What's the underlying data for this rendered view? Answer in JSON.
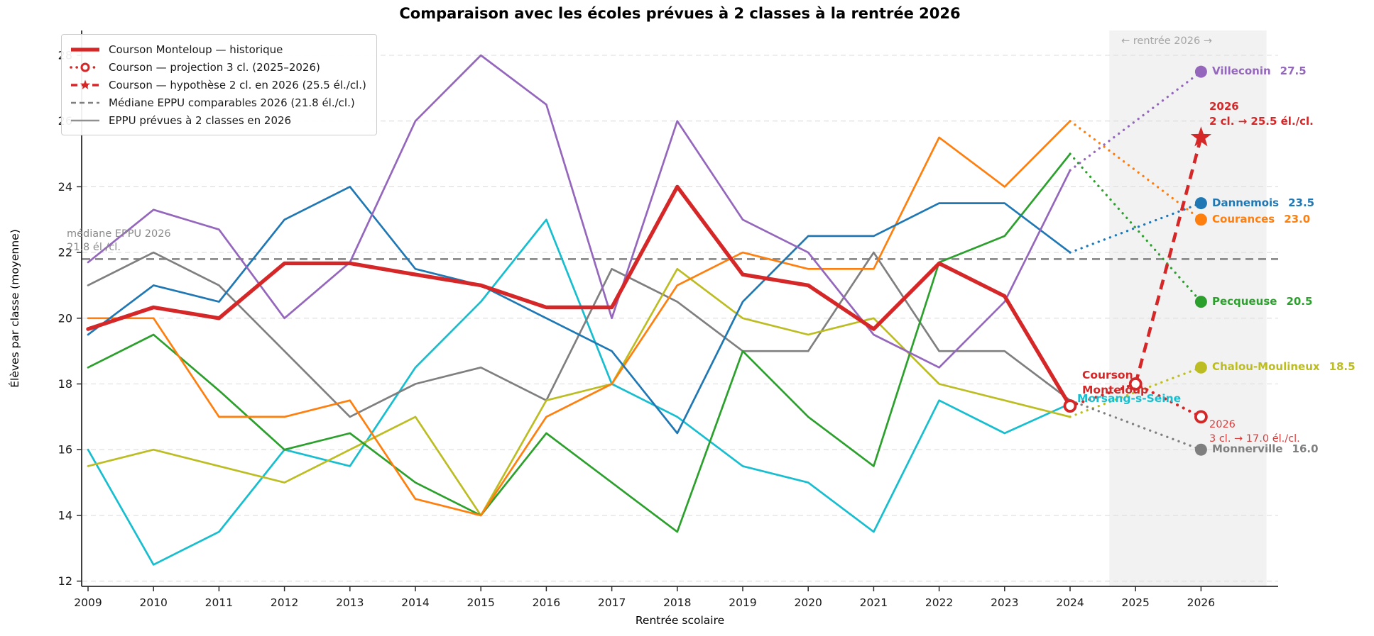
{
  "title": "Comparaison avec les écoles prévues à 2 classes à la rentrée 2026",
  "axes": {
    "xlabel": "Rentrée scolaire",
    "ylabel": "Élèves par classe (moyenne)",
    "yticks": [
      12,
      14,
      16,
      18,
      20,
      22,
      24,
      26,
      28
    ],
    "xticks": [
      2009,
      2010,
      2011,
      2012,
      2013,
      2014,
      2015,
      2016,
      2017,
      2018,
      2019,
      2020,
      2021,
      2022,
      2023,
      2024,
      2025,
      2026
    ]
  },
  "legend": {
    "items": [
      {
        "label": "Courson Monteloup — historique",
        "swatch": "thick-red-line"
      },
      {
        "label": "Courson — projection 3 cl. (2025–2026)",
        "swatch": "red-dotted-circle"
      },
      {
        "label": "Courson — hypothèse 2 cl. en 2026 (25.5 él./cl.)",
        "swatch": "red-dashed-star"
      },
      {
        "label": "Médiane EPPU comparables 2026 (21.8 él./cl.)",
        "swatch": "gray-dashed-line"
      },
      {
        "label": "EPPU prévues à 2 classes en 2026",
        "swatch": "gray-solid-line"
      }
    ]
  },
  "median": {
    "value": 21.8,
    "label_line1": "médiane EPPU 2026",
    "label_line2": "21.8 él./cl."
  },
  "band": {
    "label": "← rentrée 2026 →"
  },
  "annotations": {
    "courson_line1": "Courson",
    "courson_line2": "Monteloup",
    "morsang": "Morsang-s-Seine",
    "hyp_line1": "2026",
    "hyp_line2": "2 cl. → 25.5 él./cl.",
    "proj_line1": "2026",
    "proj_line2": "3 cl. → 17.0 él./cl."
  },
  "end_labels": [
    {
      "name": "Villeconin",
      "value": "27.5",
      "color": "#9467bd"
    },
    {
      "name": "Dannemois",
      "value": "23.5",
      "color": "#1f77b4"
    },
    {
      "name": "Courances",
      "value": "23.0",
      "color": "#ff7f0e"
    },
    {
      "name": "Pecqueuse",
      "value": "20.5",
      "color": "#2ca02c"
    },
    {
      "name": "Chalou-Moulineux",
      "value": "18.5",
      "color": "#bcbd22"
    },
    {
      "name": "Monnerville",
      "value": "16.0",
      "color": "#7f7f7f"
    }
  ],
  "chart_data": {
    "type": "line",
    "title": "Comparaison avec les écoles prévues à 2 classes à la rentrée 2026",
    "xlabel": "Rentrée scolaire",
    "ylabel": "Élèves par classe (moyenne)",
    "xlim": [
      2008.9,
      2027.2
    ],
    "ylim": [
      11.8,
      28.8
    ],
    "grid": true,
    "legend_position": "upper left",
    "shaded_band_years": [
      2024.6,
      2027.0
    ],
    "median_value": 21.8,
    "years": [
      2009,
      2010,
      2011,
      2012,
      2013,
      2014,
      2015,
      2016,
      2017,
      2018,
      2019,
      2020,
      2021,
      2022,
      2023,
      2024
    ],
    "series": [
      {
        "name": "Courson Monteloup",
        "color": "#d62728",
        "thick": true,
        "values": [
          19.67,
          20.33,
          20.0,
          21.67,
          21.67,
          21.33,
          21.0,
          20.33,
          20.33,
          24.0,
          21.33,
          21.0,
          19.67,
          21.67,
          20.67,
          17.33
        ]
      },
      {
        "name": "Villeconin",
        "color": "#9467bd",
        "thick": false,
        "values": [
          21.7,
          23.3,
          22.7,
          20.0,
          21.7,
          26.0,
          28.0,
          26.5,
          20.0,
          26.0,
          23.0,
          22.0,
          19.5,
          18.5,
          20.5,
          24.5
        ]
      },
      {
        "name": "Dannemois",
        "color": "#1f77b4",
        "thick": false,
        "values": [
          19.5,
          21.0,
          20.5,
          23.0,
          24.0,
          21.5,
          21.0,
          20.0,
          19.0,
          16.5,
          20.5,
          22.5,
          22.5,
          23.5,
          23.5,
          22.0
        ]
      },
      {
        "name": "Courances",
        "color": "#ff7f0e",
        "thick": false,
        "values": [
          20.0,
          20.0,
          17.0,
          17.0,
          17.5,
          14.5,
          14.0,
          17.0,
          18.0,
          21.0,
          22.0,
          21.5,
          21.5,
          25.5,
          24.0,
          26.0
        ]
      },
      {
        "name": "Pecqueuse",
        "color": "#2ca02c",
        "thick": false,
        "values": [
          18.5,
          19.5,
          17.8,
          16.0,
          16.5,
          15.0,
          14.0,
          16.5,
          15.0,
          13.5,
          19.0,
          17.0,
          15.5,
          21.7,
          22.5,
          25.0
        ]
      },
      {
        "name": "Chalou-Moulineux",
        "color": "#bcbd22",
        "thick": false,
        "values": [
          15.5,
          16.0,
          15.5,
          15.0,
          16.0,
          17.0,
          14.0,
          17.5,
          18.0,
          21.5,
          20.0,
          19.5,
          20.0,
          18.0,
          17.5,
          17.0
        ]
      },
      {
        "name": "Monnerville",
        "color": "#7f7f7f",
        "thick": false,
        "values": [
          21.0,
          22.0,
          21.0,
          19.0,
          17.0,
          18.0,
          18.5,
          17.5,
          21.5,
          20.5,
          19.0,
          19.0,
          22.0,
          19.0,
          19.0,
          17.5
        ]
      },
      {
        "name": "Morsang-s-Seine",
        "color": "#17becf",
        "thick": false,
        "values": [
          16.0,
          12.5,
          13.5,
          16.0,
          15.5,
          18.5,
          20.5,
          23.0,
          18.0,
          17.0,
          15.5,
          15.0,
          13.5,
          17.5,
          16.5,
          17.4
        ]
      }
    ],
    "projections": [
      {
        "name": "Villeconin",
        "color": "#9467bd",
        "from_year": 2024,
        "from": 24.5,
        "to_year": 2026,
        "to": 27.5
      },
      {
        "name": "Dannemois",
        "color": "#1f77b4",
        "from_year": 2024,
        "from": 22.0,
        "to_year": 2026,
        "to": 23.5
      },
      {
        "name": "Courances",
        "color": "#ff7f0e",
        "from_year": 2024,
        "from": 26.0,
        "to_year": 2026,
        "to": 23.0
      },
      {
        "name": "Pecqueuse",
        "color": "#2ca02c",
        "from_year": 2024,
        "from": 25.0,
        "to_year": 2026,
        "to": 20.5
      },
      {
        "name": "Chalou-Moulineux",
        "color": "#bcbd22",
        "from_year": 2024,
        "from": 17.0,
        "to_year": 2026,
        "to": 18.5
      },
      {
        "name": "Monnerville",
        "color": "#7f7f7f",
        "from_year": 2024,
        "from": 17.5,
        "to_year": 2026,
        "to": 16.0
      }
    ],
    "courson_projection": {
      "color": "#d62728",
      "points": [
        [
          2024,
          17.33
        ],
        [
          2025,
          18.0
        ],
        [
          2026,
          17.0
        ]
      ]
    },
    "courson_hypothesis": {
      "color": "#d62728",
      "points": [
        [
          2025,
          18.0
        ],
        [
          2026,
          25.5
        ]
      ]
    }
  }
}
